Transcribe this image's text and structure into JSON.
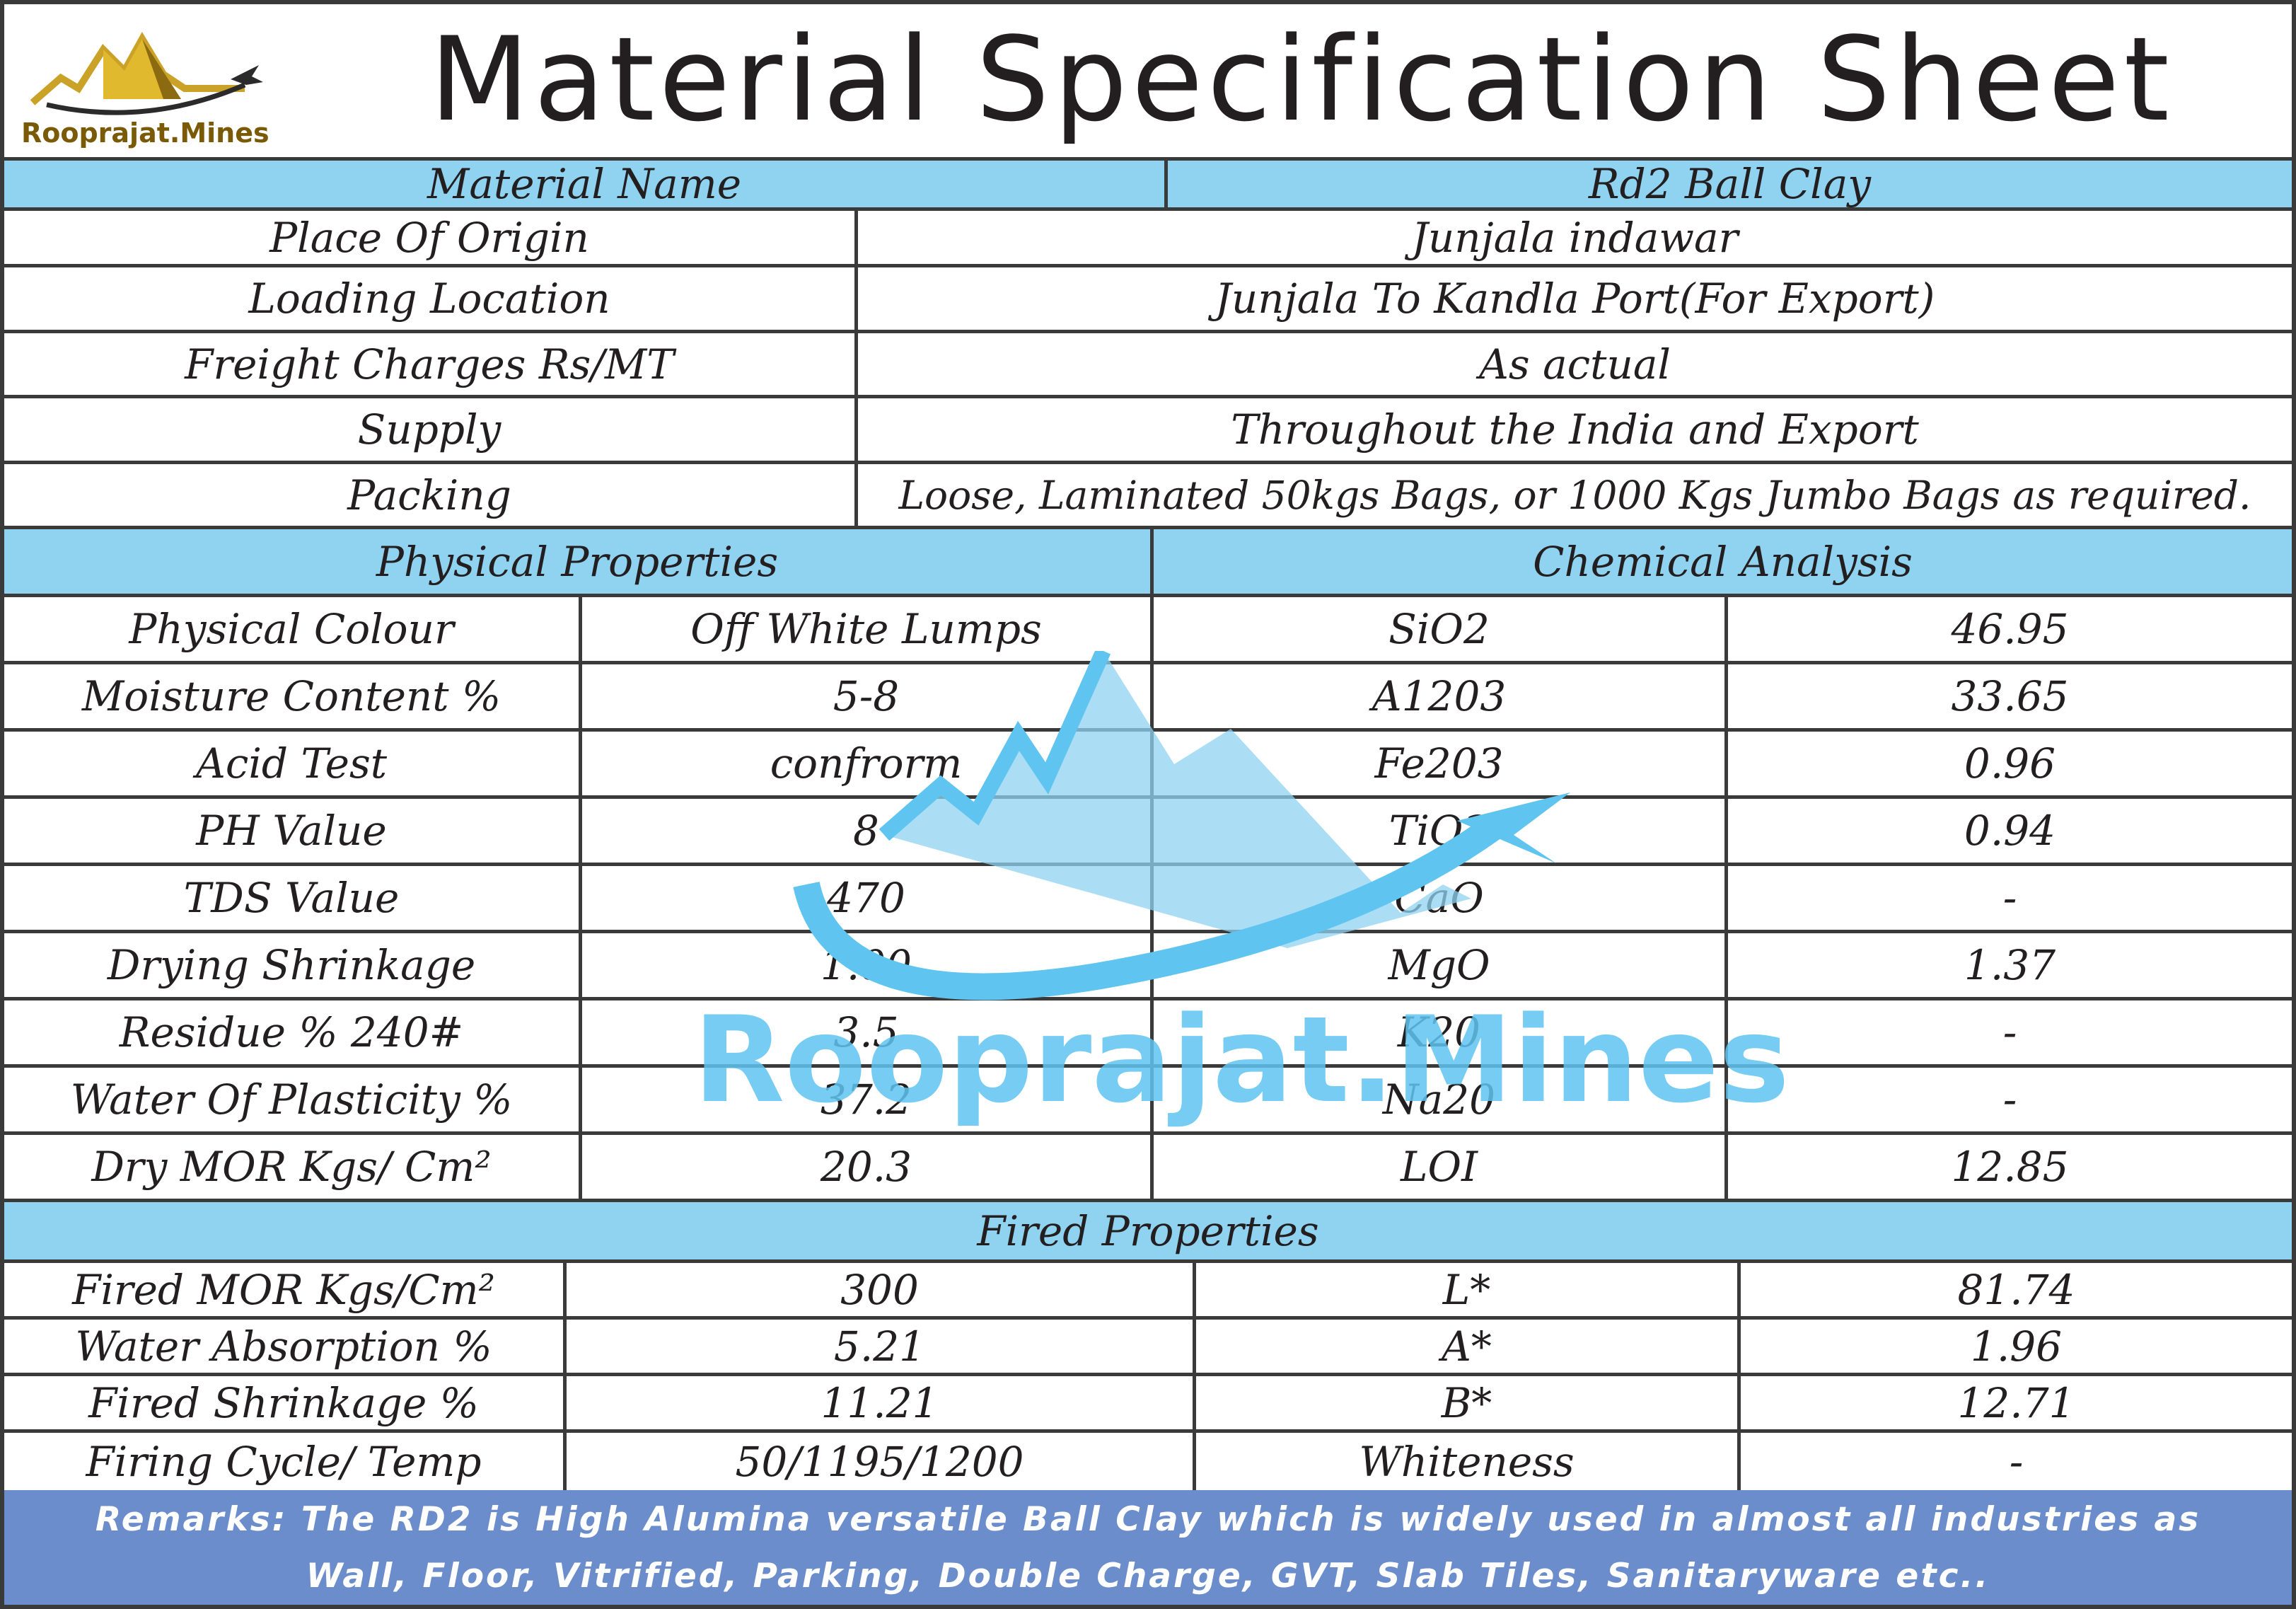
{
  "title": "Material Specification Sheet",
  "logo": {
    "text": "Rooprajat.Mines",
    "icon": "mountain-plane-icon"
  },
  "watermark": {
    "text": "Rooprajat.Mines",
    "icon": "mountain-pickaxe-icon"
  },
  "material": {
    "label": "Material Name",
    "value": "Rd2 Ball Clay"
  },
  "info_rows": [
    {
      "label": "Place Of Origin",
      "value": "Junjala indawar"
    },
    {
      "label": "Loading Location",
      "value": "Junjala To Kandla Port(For Export)"
    },
    {
      "label": "Freight Charges Rs/MT",
      "value": "As actual"
    },
    {
      "label": "Supply",
      "value": "Throughout the India and Export"
    },
    {
      "label": "Packing",
      "value": "Loose, Laminated 50kgs Bags, or 1000 Kgs Jumbo Bags as required."
    }
  ],
  "physical_header": "Physical Properties",
  "chemical_header": "Chemical Analysis",
  "physical_rows": [
    {
      "label": "Physical Colour",
      "value": "Off White Lumps",
      "chem": "SiO2",
      "chem_value": "46.95"
    },
    {
      "label": "Moisture Content %",
      "value": "5-8",
      "chem": "A1203",
      "chem_value": "33.65"
    },
    {
      "label": "Acid Test",
      "value": "confrorm",
      "chem": "Fe203",
      "chem_value": "0.96"
    },
    {
      "label": "PH Value",
      "value": "8",
      "chem": "TiO2",
      "chem_value": "0.94"
    },
    {
      "label": "TDS Value",
      "value": "470",
      "chem": "CaO",
      "chem_value": "-"
    },
    {
      "label": "Drying Shrinkage",
      "value": "1.00",
      "chem": "MgO",
      "chem_value": "1.37"
    },
    {
      "label": "Residue % 240#",
      "value": "3.5",
      "chem": "K20",
      "chem_value": "-"
    },
    {
      "label": "Water Of Plasticity %",
      "value": "37.2",
      "chem": "Na20",
      "chem_value": "-"
    },
    {
      "label": "Dry MOR Kgs/ Cm²",
      "value": "20.3",
      "chem": "LOI",
      "chem_value": "12.85"
    }
  ],
  "fired_header": "Fired Properties",
  "fired_rows": [
    {
      "label": "Fired MOR Kgs/Cm²",
      "value": "300",
      "prop": "L*",
      "prop_value": "81.74"
    },
    {
      "label": "Water Absorption %",
      "value": "5.21",
      "prop": "A*",
      "prop_value": "1.96"
    },
    {
      "label": "Fired Shrinkage %",
      "value": "11.21",
      "prop": "B*",
      "prop_value": "12.71"
    },
    {
      "label": "Firing Cycle/ Temp",
      "value": "50/1195/1200",
      "prop": "Whiteness",
      "prop_value": "-"
    }
  ],
  "remarks": {
    "line1": "Remarks: The RD2 is High Alumina versatile Ball Clay which is widely used in almost all industries as",
    "line2": "Wall, Floor, Vitrified, Parking, Double Charge, GVT, Slab Tiles, Sanitaryware etc.."
  }
}
